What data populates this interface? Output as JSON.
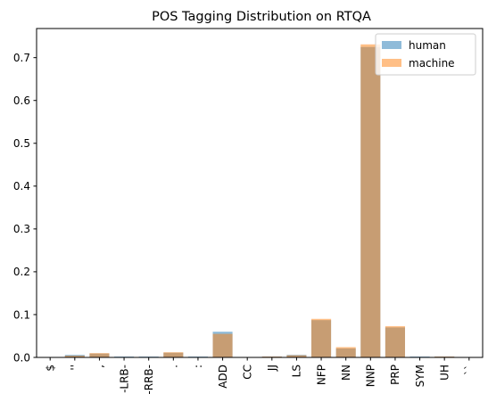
{
  "chart_data": {
    "type": "bar",
    "title": "POS Tagging Distribution on RTQA",
    "xlabel": "",
    "ylabel": "",
    "categories": [
      "$",
      "''",
      ",",
      "-LRB-",
      "-RRB-",
      ".",
      ":",
      "ADD",
      "CC",
      "JJ",
      "LS",
      "NFP",
      "NN",
      "NNP",
      "PRP",
      "SYM",
      "UH",
      "``"
    ],
    "series": [
      {
        "name": "human",
        "color": "#1f77b4",
        "opacity": 0.5,
        "values": [
          0.0003,
          0.006,
          0.009,
          0.002,
          0.002,
          0.011,
          0.002,
          0.06,
          0.0003,
          0.002,
          0.006,
          0.087,
          0.021,
          0.725,
          0.07,
          0.002,
          0.002,
          0.0003
        ]
      },
      {
        "name": "machine",
        "color": "#ff7f0e",
        "opacity": 0.5,
        "values": [
          0.0003,
          0.004,
          0.01,
          0.001,
          0.001,
          0.012,
          0.001,
          0.055,
          0.0003,
          0.002,
          0.005,
          0.09,
          0.024,
          0.731,
          0.073,
          0.001,
          0.002,
          0.0003
        ]
      }
    ],
    "ylim": [
      0,
      0.768
    ],
    "yticks": [
      0.0,
      0.1,
      0.2,
      0.3,
      0.4,
      0.5,
      0.6,
      0.7
    ],
    "ytick_labels": [
      "0.0",
      "0.1",
      "0.2",
      "0.3",
      "0.4",
      "0.5",
      "0.6",
      "0.7"
    ],
    "grid": false,
    "legend_position": "top-right"
  }
}
